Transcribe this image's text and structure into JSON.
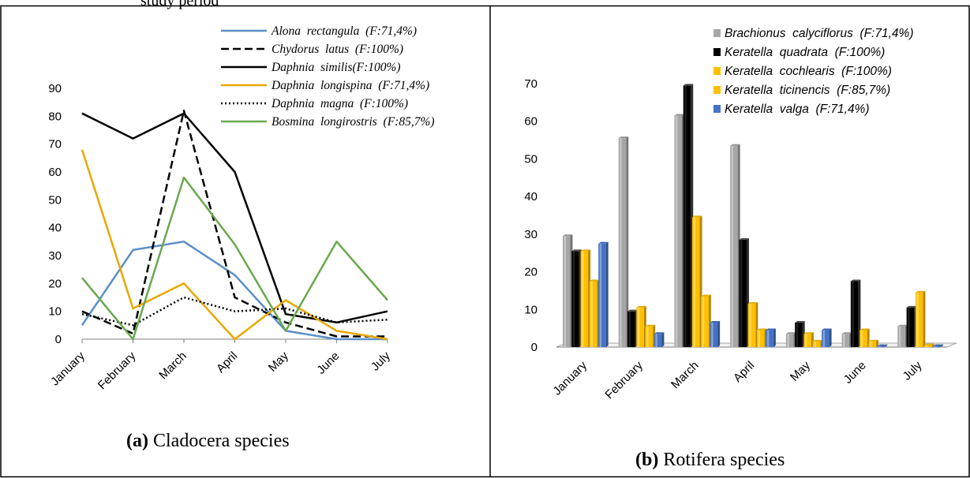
{
  "page_header_fragment": "study period",
  "panel_a_caption": {
    "letter": "(a)",
    "text": " Cladocera species"
  },
  "panel_b_caption": {
    "letter": "(b)",
    "text": " Rotifera species"
  },
  "chart_data": [
    {
      "type": "line",
      "categories": [
        "January",
        "February",
        "March",
        "April",
        "May",
        "June",
        "July"
      ],
      "ylim": [
        0,
        90
      ],
      "yticks": [
        0,
        10,
        20,
        30,
        40,
        50,
        60,
        70,
        80,
        90
      ],
      "grid": false,
      "legend_position": "top-right",
      "series": [
        {
          "name": "Alona  rectangula  (F:71,4%)",
          "color": "#5b8fc7",
          "dash": "solid",
          "values": [
            5,
            32,
            35,
            23,
            3,
            0,
            0
          ]
        },
        {
          "name": "Chydorus  latus  (F:100%)",
          "color": "#000000",
          "dash": "dashed",
          "values": [
            10,
            2,
            82,
            15,
            6,
            1,
            1
          ]
        },
        {
          "name": "Daphnia  similis(F:100%)",
          "color": "#000000",
          "dash": "solid",
          "values": [
            81,
            72,
            81,
            60,
            9,
            6,
            10
          ]
        },
        {
          "name": "Daphnia  longispina  (F:71,4%)",
          "color": "#e8a800",
          "dash": "solid",
          "values": [
            68,
            11,
            20,
            0,
            14,
            3,
            0
          ]
        },
        {
          "name": "Daphnia  magna  (F:100%)",
          "color": "#000000",
          "dash": "dotted",
          "values": [
            9,
            5,
            15,
            10,
            11,
            6,
            7
          ]
        },
        {
          "name": "Bosmina  longirostris  (F:85,7%)",
          "color": "#6aa84f",
          "dash": "solid",
          "values": [
            22,
            0,
            58,
            34,
            3,
            35,
            14
          ]
        }
      ]
    },
    {
      "type": "bar",
      "categories": [
        "January",
        "February",
        "March",
        "April",
        "May",
        "June",
        "July"
      ],
      "ylim": [
        0,
        70
      ],
      "yticks": [
        0,
        10,
        20,
        30,
        40,
        50,
        60,
        70
      ],
      "grid": false,
      "legend_position": "top-right",
      "series": [
        {
          "name": "Brachionus  calyciflorus  (F:71,4%)",
          "color": "#a6a6a6",
          "values": [
            29.5,
            55.5,
            61.5,
            53.5,
            3.5,
            3.5,
            5.5
          ]
        },
        {
          "name": "Keratella  quadrata  (F:100%)",
          "color": "#000000",
          "values": [
            25.5,
            9.5,
            69.5,
            28.5,
            6.5,
            17.5,
            10.5
          ]
        },
        {
          "name": "Keratella  cochlearis  (F:100%)",
          "color": "#ffc000",
          "values": [
            25.5,
            10.5,
            34.5,
            11.5,
            3.5,
            4.5,
            14.5
          ]
        },
        {
          "name": "Keratella  ticinencis  (F:85,7%)",
          "color": "#ffc000",
          "values": [
            17.5,
            5.5,
            13.5,
            4.5,
            1.5,
            1.5,
            0.5
          ]
        },
        {
          "name": "Keratella  valga  (F:71,4%)",
          "color": "#4472c4",
          "values": [
            27.5,
            3.5,
            6.5,
            4.5,
            4.5,
            0.3,
            0.3
          ]
        }
      ]
    }
  ]
}
